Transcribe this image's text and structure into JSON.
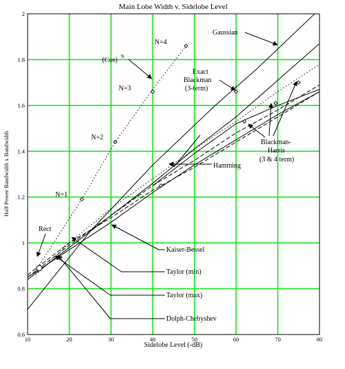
{
  "chart_data": {
    "type": "line",
    "title": "Main Lobe Width v. Sidelobe Level",
    "xlabel": "Sidelobe Level (-dB)",
    "ylabel": "Half Power Bandwidth x Bandwidth",
    "xlim": [
      10,
      80
    ],
    "ylim": [
      0.6,
      2.0
    ],
    "x_ticks": [
      "10",
      "20",
      "30",
      "40",
      "50",
      "60",
      "70",
      "80"
    ],
    "y_ticks": [
      "0.6",
      "0.8",
      "1",
      "1.2",
      "1.4",
      "1.6",
      "1.8",
      "2"
    ],
    "grid": true,
    "grid_color": "#19e619",
    "series": [
      {
        "style": "solid",
        "x": [
          10,
          25,
          40,
          55,
          65,
          80
        ],
        "y": [
          0.71,
          1.05,
          1.34,
          1.6,
          1.76,
          2.02
        ]
      },
      {
        "style": "solid",
        "x": [
          10,
          20,
          30,
          40,
          50,
          60,
          70,
          80
        ],
        "y": [
          0.84,
          0.98,
          1.12,
          1.26,
          1.41,
          1.55,
          1.71,
          1.87
        ]
      },
      {
        "style": "solid",
        "x": [
          40,
          50,
          60,
          70,
          80
        ],
        "y": [
          1.25,
          1.39,
          1.52,
          1.6,
          1.67
        ]
      },
      {
        "style": "dashed",
        "x": [
          10,
          20,
          30,
          40,
          50,
          60,
          70,
          80
        ],
        "y": [
          0.86,
          1.0,
          1.11,
          1.23,
          1.33,
          1.44,
          1.55,
          1.66
        ]
      },
      {
        "style": "dashed",
        "x": [
          10,
          20,
          30,
          40,
          50,
          60,
          70,
          80
        ],
        "y": [
          0.85,
          0.99,
          1.12,
          1.25,
          1.36,
          1.48,
          1.58,
          1.69
        ]
      },
      {
        "style": "dotted",
        "x": [
          12,
          20,
          30,
          40,
          50,
          60,
          70,
          80
        ],
        "y": [
          0.86,
          1.0,
          1.15,
          1.28,
          1.41,
          1.53,
          1.66,
          1.78
        ]
      },
      {
        "style": "solid",
        "x": [
          10,
          20,
          30,
          40,
          50,
          60,
          70,
          80
        ],
        "y": [
          0.85,
          0.97,
          1.09,
          1.22,
          1.34,
          1.45,
          1.56,
          1.66
        ]
      },
      {
        "style": "dotted",
        "x": [
          12,
          18,
          23,
          31,
          40,
          48
        ],
        "y": [
          0.88,
          1.05,
          1.19,
          1.44,
          1.67,
          1.86
        ]
      }
    ],
    "markers": [
      {
        "x": 12.8,
        "y": 0.89,
        "shape": "circle"
      },
      {
        "x": 23,
        "y": 1.19,
        "shape": "diamond"
      },
      {
        "x": 31,
        "y": 1.44,
        "shape": "diamond"
      },
      {
        "x": 40,
        "y": 1.66,
        "shape": "diamond"
      },
      {
        "x": 48,
        "y": 1.86,
        "shape": "diamond"
      },
      {
        "x": 60,
        "y": 1.66,
        "shape": "diamond"
      },
      {
        "x": 62,
        "y": 1.53,
        "shape": "diamond"
      },
      {
        "x": 69.5,
        "y": 1.61,
        "shape": "diamond"
      },
      {
        "x": 75,
        "y": 1.7,
        "shape": "diamond"
      },
      {
        "x": 42,
        "y": 1.25,
        "shape": "diamond"
      }
    ],
    "annotations": {
      "gaussian": "Gaussian",
      "cos": "(Cos)",
      "cos_sup": "N",
      "n4": "N=4",
      "n3": "N=3",
      "n2": "N=2",
      "n1": "N=1",
      "blackman_1": "Exact",
      "blackman_2": "Blackman",
      "blackman_3": "(3-term)",
      "bh_1": "Blackman-",
      "bh_2": "Harris",
      "bh_3": "(3 & 4 term)",
      "hamming": "Hamming",
      "rect": "Rect",
      "kaiser": "Kaiser-Bessel",
      "taylor_min": "Taylor (min)",
      "taylor_max": "Taylor (max)",
      "dolph": "Dolph-Chebyshev"
    }
  }
}
